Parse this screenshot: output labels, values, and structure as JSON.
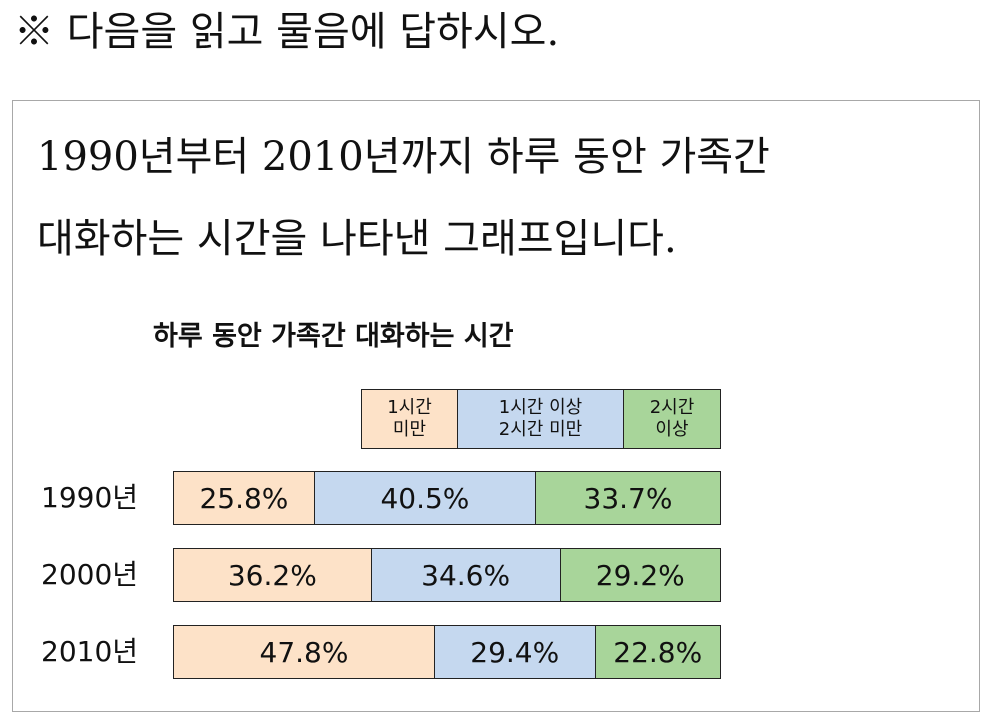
{
  "question": "※ 다음을 읽고 물음에 답하시오.",
  "description": {
    "line1": "1990년부터 2010년까지 하루 동안 가족간",
    "line2": "대화하는 시간을 나타낸 그래프입니다."
  },
  "chart_data": {
    "type": "bar",
    "orientation": "horizontal",
    "stacked": true,
    "title": "하루 동안 가족간 대화하는 시간",
    "categories": [
      "1990년",
      "2000년",
      "2010년"
    ],
    "series": [
      {
        "name": "1시간\n미만",
        "color": "#fde2c8",
        "values": [
          25.8,
          36.2,
          47.8
        ],
        "labels": [
          "25.8%",
          "36.2%",
          "47.8%"
        ]
      },
      {
        "name": "1시간 이상\n2시간 미만",
        "color": "#c5d8ef",
        "values": [
          40.5,
          34.6,
          29.4
        ],
        "labels": [
          "40.5%",
          "34.6%",
          "29.4%"
        ]
      },
      {
        "name": "2시간\n이상",
        "color": "#a8d59a",
        "values": [
          33.7,
          29.2,
          22.8
        ],
        "labels": [
          "33.7%",
          "29.2%",
          "22.8%"
        ]
      }
    ],
    "xlim": [
      0,
      100
    ],
    "legend": "top"
  }
}
